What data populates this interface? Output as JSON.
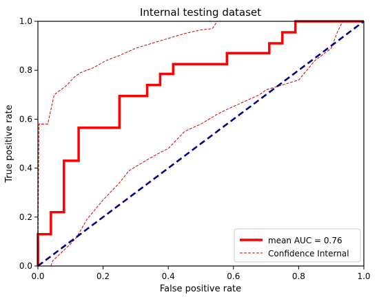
{
  "chart_data": {
    "type": "line",
    "title": "Internal testing dataset",
    "xlabel": "False positive rate",
    "ylabel": "True positive rate",
    "xlim": [
      0.0,
      1.0
    ],
    "ylim": [
      0.0,
      1.0
    ],
    "xticks": [
      "0.0",
      "0.2",
      "0.4",
      "0.6",
      "0.8",
      "1.0"
    ],
    "yticks": [
      "0.0",
      "0.2",
      "0.4",
      "0.6",
      "0.8",
      "1.0"
    ],
    "grid": false,
    "legend_position": "bottom-right",
    "series": [
      {
        "name": "mean AUC = 0.76",
        "style": "solid",
        "color": "#ff0000",
        "points": [
          [
            0,
            0
          ],
          [
            0,
            0.13
          ],
          [
            0.04,
            0.13
          ],
          [
            0.04,
            0.22
          ],
          [
            0.08,
            0.22
          ],
          [
            0.08,
            0.43
          ],
          [
            0.125,
            0.43
          ],
          [
            0.125,
            0.565
          ],
          [
            0.25,
            0.565
          ],
          [
            0.25,
            0.695
          ],
          [
            0.335,
            0.695
          ],
          [
            0.335,
            0.74
          ],
          [
            0.375,
            0.74
          ],
          [
            0.375,
            0.785
          ],
          [
            0.415,
            0.785
          ],
          [
            0.415,
            0.825
          ],
          [
            0.58,
            0.825
          ],
          [
            0.58,
            0.87
          ],
          [
            0.71,
            0.87
          ],
          [
            0.71,
            0.91
          ],
          [
            0.75,
            0.91
          ],
          [
            0.75,
            0.955
          ],
          [
            0.79,
            0.955
          ],
          [
            0.79,
            1.0
          ],
          [
            1.0,
            1.0
          ]
        ]
      },
      {
        "name": "Confidence Internal",
        "style": "dashed",
        "color": "#cc0000",
        "points": [
          [
            0,
            0
          ],
          [
            0.003,
            0.58
          ],
          [
            0.03,
            0.58
          ],
          [
            0.05,
            0.7
          ],
          [
            0.07,
            0.72
          ],
          [
            0.09,
            0.74
          ],
          [
            0.11,
            0.77
          ],
          [
            0.13,
            0.79
          ],
          [
            0.17,
            0.81
          ],
          [
            0.21,
            0.84
          ],
          [
            0.25,
            0.86
          ],
          [
            0.3,
            0.89
          ],
          [
            0.35,
            0.91
          ],
          [
            0.4,
            0.93
          ],
          [
            0.45,
            0.95
          ],
          [
            0.5,
            0.965
          ],
          [
            0.535,
            0.97
          ],
          [
            0.55,
            1.0
          ],
          [
            1.0,
            1.0
          ]
        ]
      },
      {
        "name": "",
        "style": "dashed",
        "color": "#cc0000",
        "points": [
          [
            0.04,
            0
          ],
          [
            0.045,
            0.02
          ],
          [
            0.06,
            0.04
          ],
          [
            0.1,
            0.09
          ],
          [
            0.12,
            0.12
          ],
          [
            0.15,
            0.19
          ],
          [
            0.2,
            0.27
          ],
          [
            0.25,
            0.34
          ],
          [
            0.28,
            0.39
          ],
          [
            0.33,
            0.43
          ],
          [
            0.37,
            0.46
          ],
          [
            0.4,
            0.48
          ],
          [
            0.45,
            0.55
          ],
          [
            0.5,
            0.58
          ],
          [
            0.55,
            0.62
          ],
          [
            0.58,
            0.64
          ],
          [
            0.63,
            0.67
          ],
          [
            0.68,
            0.7
          ],
          [
            0.7,
            0.72
          ],
          [
            0.75,
            0.74
          ],
          [
            0.8,
            0.76
          ],
          [
            0.85,
            0.84
          ],
          [
            0.9,
            0.89
          ],
          [
            0.92,
            0.96
          ],
          [
            0.935,
            1.0
          ]
        ]
      },
      {
        "name": "",
        "style": "dashed",
        "color": "#000080",
        "points": [
          [
            0,
            0
          ],
          [
            1.0,
            1.0
          ]
        ]
      }
    ],
    "legend": [
      {
        "label": "mean AUC = 0.76",
        "style": "solid",
        "color": "#ff0000"
      },
      {
        "label": "Confidence Internal",
        "style": "dashed",
        "color": "#cc0000"
      }
    ]
  }
}
